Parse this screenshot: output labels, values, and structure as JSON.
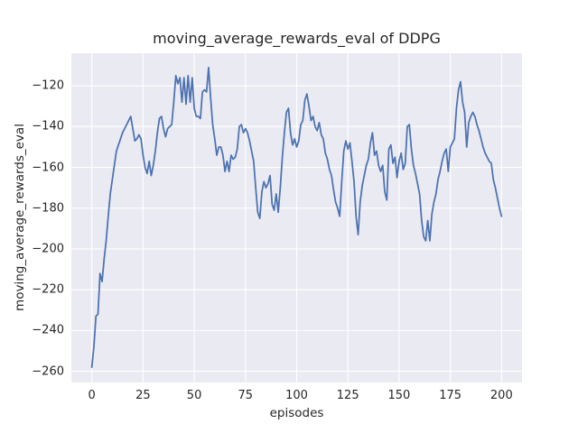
{
  "chart_data": {
    "type": "line",
    "title": "moving_average_rewards_eval of DDPG",
    "xlabel": "episodes",
    "ylabel": "moving_average_rewards_eval",
    "xlim": [
      -10,
      210
    ],
    "ylim": [
      -265.5,
      -104
    ],
    "grid": true,
    "legend": "none",
    "xticks": [
      0,
      25,
      50,
      75,
      100,
      125,
      150,
      175,
      200
    ],
    "xtick_labels": [
      "0",
      "25",
      "50",
      "75",
      "100",
      "125",
      "150",
      "175",
      "200"
    ],
    "yticks": [
      -260,
      -240,
      -220,
      -200,
      -180,
      -160,
      -140,
      -120
    ],
    "ytick_labels": [
      "−260",
      "−240",
      "−220",
      "−200",
      "−180",
      "−160",
      "−140",
      "−120"
    ],
    "x_start": 0,
    "x_step": 1,
    "series": [
      {
        "name": "moving_average_rewards_eval",
        "color": "#4c72b0",
        "values": [
          -258,
          -248,
          -233,
          -232,
          -212,
          -216,
          -205,
          -196,
          -184,
          -173,
          -166,
          -159,
          -152,
          -149,
          -146,
          -143,
          -141,
          -139,
          -137,
          -135,
          -141,
          -147,
          -146,
          -144,
          -146,
          -154,
          -160,
          -163,
          -157,
          -164,
          -159,
          -152,
          -143,
          -136,
          -135,
          -141,
          -145,
          -141,
          -140,
          -139,
          -128,
          -115,
          -119,
          -116,
          -128,
          -116,
          -129,
          -115,
          -128,
          -116,
          -131,
          -135,
          -135,
          -136,
          -123,
          -122,
          -123,
          -111,
          -126,
          -139,
          -146,
          -154,
          -150,
          -150,
          -154,
          -162,
          -157,
          -162,
          -154,
          -156,
          -155,
          -151,
          -140,
          -139,
          -143,
          -141,
          -143,
          -147,
          -152,
          -157,
          -170,
          -182,
          -185,
          -172,
          -167,
          -170,
          -168,
          -164,
          -178,
          -181,
          -173,
          -182,
          -170,
          -155,
          -143,
          -133,
          -131,
          -143,
          -149,
          -146,
          -150,
          -147,
          -139,
          -137,
          -127,
          -124,
          -130,
          -137,
          -135,
          -140,
          -142,
          -138,
          -144,
          -146,
          -153,
          -156,
          -161,
          -164,
          -171,
          -177,
          -180,
          -184,
          -167,
          -152,
          -147,
          -151,
          -148,
          -157,
          -167,
          -184,
          -193,
          -177,
          -169,
          -164,
          -159,
          -156,
          -148,
          -143,
          -154,
          -152,
          -159,
          -162,
          -159,
          -172,
          -176,
          -151,
          -149,
          -158,
          -155,
          -165,
          -157,
          -153,
          -161,
          -158,
          -140,
          -139,
          -151,
          -159,
          -163,
          -168,
          -173,
          -186,
          -194,
          -196,
          -186,
          -196,
          -183,
          -177,
          -173,
          -166,
          -162,
          -157,
          -153,
          -151,
          -162,
          -150,
          -148,
          -146,
          -131,
          -122,
          -118,
          -128,
          -133,
          -150,
          -138,
          -135,
          -133,
          -135,
          -139,
          -142,
          -146,
          -150,
          -153,
          -155,
          -157,
          -158,
          -166,
          -170,
          -175,
          -180,
          -184
        ]
      }
    ],
    "colors": {
      "figure_background": "#ffffff",
      "axes_background": "#eaeaf2",
      "grid": "#ffffff",
      "line": "#4c72b0",
      "text": "#262626"
    }
  }
}
